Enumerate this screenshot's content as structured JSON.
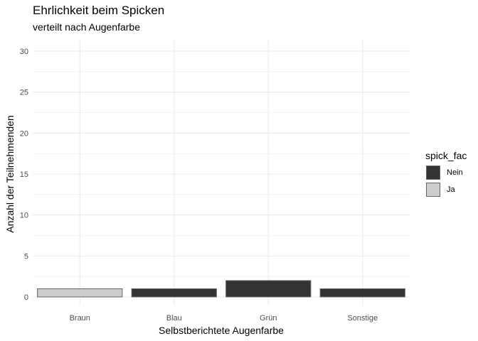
{
  "chart_data": {
    "type": "bar",
    "title": "Ehrlichkeit beim Spicken",
    "subtitle": "verteilt nach Augenfarbe",
    "xlabel": "Selbstberichtete Augenfarbe",
    "ylabel": "Anzahl der Teilnehmenden",
    "categories": [
      "Braun",
      "Blau",
      "Grün",
      "Sonstige"
    ],
    "series": [
      {
        "name": "Nein",
        "color": "#333333",
        "values": [
          0,
          1,
          2,
          1
        ]
      },
      {
        "name": "Ja",
        "color": "#cccccc",
        "values": [
          1,
          0,
          0,
          0
        ]
      }
    ],
    "yticks": [
      0,
      5,
      10,
      15,
      20,
      25,
      30
    ],
    "ylim": [
      0,
      30
    ],
    "grid": true,
    "legend": {
      "title": "spick_fac",
      "entries": [
        "Nein",
        "Ja"
      ],
      "placement": "right"
    }
  }
}
